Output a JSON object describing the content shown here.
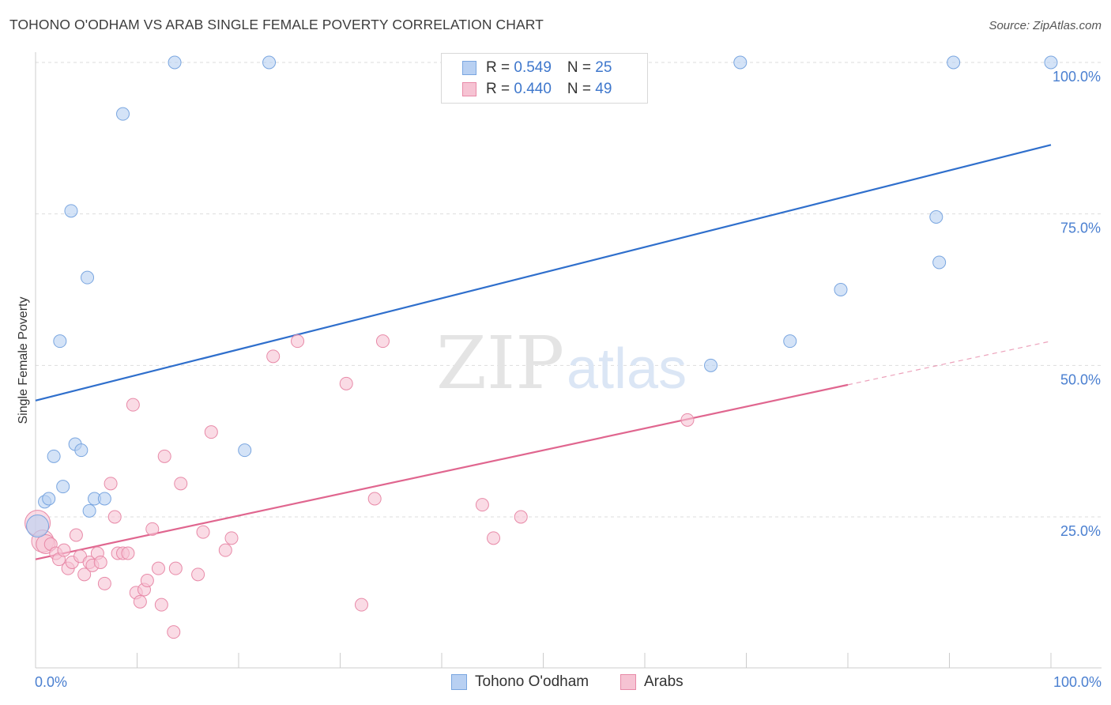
{
  "title": "TOHONO O'ODHAM VS ARAB SINGLE FEMALE POVERTY CORRELATION CHART",
  "source": "Source: ZipAtlas.com",
  "watermark": {
    "zip": "ZIP",
    "atlas": "atlas"
  },
  "colors": {
    "blue_fill": "#b8d0f2",
    "blue_stroke": "#7aa6e0",
    "blue_line": "#2f6fcc",
    "pink_fill": "#f6c3d3",
    "pink_stroke": "#e88aa8",
    "pink_line": "#e0668f",
    "grid": "#dddddd",
    "tick_text": "#4a7fd0"
  },
  "legend": {
    "rows": [
      {
        "r_label": "R = ",
        "r_value": "0.549",
        "n_label": "N = ",
        "n_value": "25"
      },
      {
        "r_label": "R = ",
        "r_value": "0.440",
        "n_label": "N = ",
        "n_value": "49"
      }
    ]
  },
  "bottom_legend": [
    "Tohono O'odham",
    "Arabs"
  ],
  "chart_data": {
    "type": "scatter",
    "title": "TOHONO O'ODHAM VS ARAB SINGLE FEMALE POVERTY CORRELATION CHART",
    "xlabel": "",
    "ylabel": "Single Female Poverty",
    "xlim": [
      0,
      100
    ],
    "ylim": [
      0,
      102
    ],
    "x_tick_labels": [
      "0.0%",
      "100.0%"
    ],
    "y_ticks": [
      25,
      50,
      75,
      100
    ],
    "y_tick_labels": [
      "25.0%",
      "50.0%",
      "75.0%",
      "100.0%"
    ],
    "grid": true,
    "legend_position": "top-center",
    "series": [
      {
        "name": "Tohono O'odham",
        "r": 0.549,
        "n": 25,
        "trend": {
          "x": [
            0,
            100
          ],
          "y": [
            44.2,
            86.4
          ]
        },
        "points": [
          {
            "x": 0.2,
            "y": 23.5,
            "s": 14
          },
          {
            "x": 0.9,
            "y": 27.5,
            "s": 8
          },
          {
            "x": 1.3,
            "y": 28,
            "s": 8
          },
          {
            "x": 1.8,
            "y": 35,
            "s": 8
          },
          {
            "x": 2.4,
            "y": 54,
            "s": 8
          },
          {
            "x": 2.7,
            "y": 30,
            "s": 8
          },
          {
            "x": 3.5,
            "y": 75.5,
            "s": 8
          },
          {
            "x": 3.9,
            "y": 37,
            "s": 8
          },
          {
            "x": 4.5,
            "y": 36,
            "s": 8
          },
          {
            "x": 5.1,
            "y": 64.5,
            "s": 8
          },
          {
            "x": 5.3,
            "y": 26,
            "s": 8
          },
          {
            "x": 5.8,
            "y": 28,
            "s": 8
          },
          {
            "x": 6.8,
            "y": 28,
            "s": 8
          },
          {
            "x": 8.6,
            "y": 91.5,
            "s": 8
          },
          {
            "x": 13.7,
            "y": 100,
            "s": 8
          },
          {
            "x": 20.6,
            "y": 36,
            "s": 8
          },
          {
            "x": 23,
            "y": 100,
            "s": 8
          },
          {
            "x": 66.5,
            "y": 50,
            "s": 8
          },
          {
            "x": 69.4,
            "y": 100,
            "s": 8
          },
          {
            "x": 74.3,
            "y": 54,
            "s": 8
          },
          {
            "x": 79.3,
            "y": 62.5,
            "s": 8
          },
          {
            "x": 88.7,
            "y": 74.5,
            "s": 8
          },
          {
            "x": 89,
            "y": 67,
            "s": 8
          },
          {
            "x": 90.4,
            "y": 100,
            "s": 8
          },
          {
            "x": 100,
            "y": 100,
            "s": 8
          }
        ]
      },
      {
        "name": "Arabs",
        "r": 0.44,
        "n": 49,
        "trend": {
          "x": [
            0,
            80
          ],
          "y": [
            18,
            46.8
          ]
        },
        "trend_dashed": {
          "x": [
            80,
            100
          ],
          "y": [
            46.8,
            54
          ]
        },
        "points": [
          {
            "x": 0.2,
            "y": 24,
            "s": 16
          },
          {
            "x": 0.7,
            "y": 21,
            "s": 14
          },
          {
            "x": 1,
            "y": 20.5,
            "s": 12
          },
          {
            "x": 1.5,
            "y": 20.5,
            "s": 8
          },
          {
            "x": 2,
            "y": 19,
            "s": 8
          },
          {
            "x": 2.3,
            "y": 18,
            "s": 8
          },
          {
            "x": 2.8,
            "y": 19.5,
            "s": 8
          },
          {
            "x": 3.2,
            "y": 16.5,
            "s": 8
          },
          {
            "x": 3.6,
            "y": 17.5,
            "s": 8
          },
          {
            "x": 4,
            "y": 22,
            "s": 8
          },
          {
            "x": 4.4,
            "y": 18.5,
            "s": 8
          },
          {
            "x": 4.8,
            "y": 15.5,
            "s": 8
          },
          {
            "x": 5.3,
            "y": 17.5,
            "s": 8
          },
          {
            "x": 5.6,
            "y": 17,
            "s": 8
          },
          {
            "x": 6.1,
            "y": 19,
            "s": 8
          },
          {
            "x": 6.4,
            "y": 17.5,
            "s": 8
          },
          {
            "x": 6.8,
            "y": 14,
            "s": 8
          },
          {
            "x": 7.4,
            "y": 30.5,
            "s": 8
          },
          {
            "x": 7.8,
            "y": 25,
            "s": 8
          },
          {
            "x": 8.1,
            "y": 19,
            "s": 8
          },
          {
            "x": 8.6,
            "y": 19,
            "s": 8
          },
          {
            "x": 9.1,
            "y": 19,
            "s": 8
          },
          {
            "x": 9.6,
            "y": 43.5,
            "s": 8
          },
          {
            "x": 9.9,
            "y": 12.5,
            "s": 8
          },
          {
            "x": 10.3,
            "y": 11,
            "s": 8
          },
          {
            "x": 10.7,
            "y": 13,
            "s": 8
          },
          {
            "x": 11,
            "y": 14.5,
            "s": 8
          },
          {
            "x": 11.5,
            "y": 23,
            "s": 8
          },
          {
            "x": 12.1,
            "y": 16.5,
            "s": 8
          },
          {
            "x": 12.4,
            "y": 10.5,
            "s": 8
          },
          {
            "x": 12.7,
            "y": 35,
            "s": 8
          },
          {
            "x": 13.6,
            "y": 6,
            "s": 8
          },
          {
            "x": 13.8,
            "y": 16.5,
            "s": 8
          },
          {
            "x": 14.3,
            "y": 30.5,
            "s": 8
          },
          {
            "x": 16,
            "y": 15.5,
            "s": 8
          },
          {
            "x": 16.5,
            "y": 22.5,
            "s": 8
          },
          {
            "x": 17.3,
            "y": 39,
            "s": 8
          },
          {
            "x": 18.7,
            "y": 19.5,
            "s": 8
          },
          {
            "x": 19.3,
            "y": 21.5,
            "s": 8
          },
          {
            "x": 23.4,
            "y": 51.5,
            "s": 8
          },
          {
            "x": 25.8,
            "y": 54,
            "s": 8
          },
          {
            "x": 30.6,
            "y": 47,
            "s": 8
          },
          {
            "x": 32.1,
            "y": 10.5,
            "s": 8
          },
          {
            "x": 33.4,
            "y": 28,
            "s": 8
          },
          {
            "x": 34.2,
            "y": 54,
            "s": 8
          },
          {
            "x": 44,
            "y": 27,
            "s": 8
          },
          {
            "x": 45.1,
            "y": 21.5,
            "s": 8
          },
          {
            "x": 47.8,
            "y": 25,
            "s": 8
          },
          {
            "x": 64.2,
            "y": 41,
            "s": 8
          }
        ]
      }
    ]
  }
}
